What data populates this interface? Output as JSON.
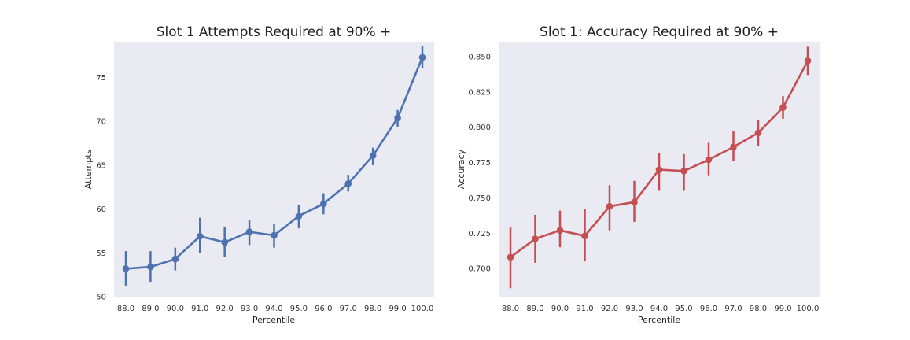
{
  "chart_data": [
    {
      "type": "line",
      "title": "Slot 1 Attempts Required at 90% +",
      "xlabel": "Percentile",
      "ylabel": "Attempts",
      "categories": [
        "88.0",
        "89.0",
        "90.0",
        "91.0",
        "92.0",
        "93.0",
        "94.0",
        "95.0",
        "96.0",
        "97.0",
        "98.0",
        "99.0",
        "100.0"
      ],
      "values": [
        53.2,
        53.4,
        54.3,
        56.9,
        56.2,
        57.4,
        57.0,
        59.2,
        60.6,
        62.9,
        66.1,
        70.4,
        77.3
      ],
      "error_low": [
        51.2,
        51.7,
        53.0,
        55.0,
        54.5,
        55.9,
        55.6,
        57.8,
        59.4,
        62.0,
        65.0,
        69.4,
        76.1
      ],
      "error_high": [
        55.2,
        55.2,
        55.6,
        59.0,
        58.0,
        58.8,
        58.3,
        60.5,
        61.8,
        63.9,
        67.0,
        71.3,
        78.6
      ],
      "yticks": [
        50,
        55,
        60,
        65,
        70,
        75
      ],
      "ylim": [
        50,
        79
      ],
      "color": "#4c72b0",
      "background": "#eaeaf2",
      "grid": false
    },
    {
      "type": "line",
      "title": "Slot 1: Accuracy Required at 90% +",
      "xlabel": "Percentile",
      "ylabel": "Accuracy",
      "categories": [
        "88.0",
        "89.0",
        "90.0",
        "91.0",
        "92.0",
        "93.0",
        "94.0",
        "95.0",
        "96.0",
        "97.0",
        "98.0",
        "99.0",
        "100.0"
      ],
      "values": [
        0.708,
        0.721,
        0.727,
        0.723,
        0.744,
        0.747,
        0.77,
        0.769,
        0.777,
        0.786,
        0.796,
        0.814,
        0.847
      ],
      "error_low": [
        0.686,
        0.704,
        0.715,
        0.705,
        0.727,
        0.733,
        0.755,
        0.755,
        0.766,
        0.776,
        0.787,
        0.806,
        0.837
      ],
      "error_high": [
        0.729,
        0.738,
        0.741,
        0.742,
        0.759,
        0.762,
        0.782,
        0.781,
        0.789,
        0.797,
        0.805,
        0.822,
        0.857
      ],
      "yticks": [
        "0.700",
        "0.725",
        "0.750",
        "0.775",
        "0.800",
        "0.825",
        "0.850"
      ],
      "ylim": [
        0.68,
        0.86
      ],
      "color": "#c44e52",
      "background": "#eaeaf2",
      "grid": false
    }
  ]
}
